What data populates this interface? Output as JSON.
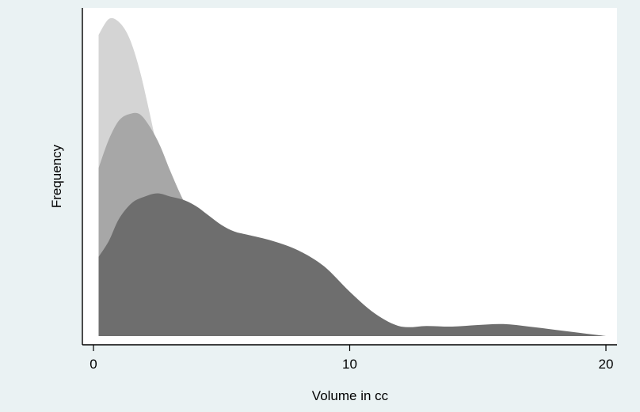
{
  "chart_data": {
    "type": "area",
    "chart_kind": "overlaid density curves",
    "title": "",
    "xlabel": "Volume in cc",
    "ylabel": "Frequency",
    "xlim": [
      0,
      20
    ],
    "ylim": [
      0,
      1
    ],
    "y_ticks_shown": false,
    "x_ticks": [
      0,
      10,
      20
    ],
    "grid": false,
    "legend": "none",
    "colors": {
      "outer_background": "#eaf2f3",
      "plot_background": "#ffffff",
      "axis": "#000000"
    },
    "series": [
      {
        "fill": "#d4d4d4",
        "x": [
          0.2,
          0.6,
          1.0,
          1.4,
          1.8,
          2.2,
          2.6,
          3.0,
          3.4,
          3.8,
          4.2,
          4.6,
          5.0,
          5.5,
          6.0,
          7.0,
          8.0,
          9.0,
          10.0,
          12.0,
          15.0,
          20.0
        ],
        "values": [
          0.95,
          1.0,
          0.99,
          0.94,
          0.84,
          0.7,
          0.55,
          0.41,
          0.29,
          0.2,
          0.13,
          0.09,
          0.06,
          0.04,
          0.025,
          0.015,
          0.01,
          0.008,
          0.006,
          0.004,
          0.002,
          0.0
        ]
      },
      {
        "fill": "#a7a7a7",
        "x": [
          0.2,
          0.6,
          1.0,
          1.4,
          1.8,
          2.2,
          2.6,
          3.0,
          3.5,
          4.0,
          4.5,
          5.0,
          5.5,
          6.0,
          7.0,
          8.0,
          9.0,
          10.0,
          11.0,
          12.0,
          13.0,
          15.0,
          20.0
        ],
        "values": [
          0.53,
          0.62,
          0.68,
          0.7,
          0.7,
          0.66,
          0.6,
          0.52,
          0.43,
          0.36,
          0.3,
          0.25,
          0.21,
          0.18,
          0.14,
          0.1,
          0.075,
          0.05,
          0.04,
          0.03,
          0.025,
          0.01,
          0.0
        ]
      },
      {
        "fill": "#6e6e6e",
        "x": [
          0.2,
          0.6,
          1.0,
          1.5,
          2.0,
          2.5,
          3.0,
          3.5,
          4.0,
          4.5,
          5.0,
          5.5,
          6.0,
          7.0,
          8.0,
          9.0,
          10.0,
          11.0,
          12.0,
          13.0,
          14.0,
          15.0,
          16.0,
          17.0,
          18.0,
          19.0,
          20.0
        ],
        "values": [
          0.25,
          0.3,
          0.37,
          0.42,
          0.44,
          0.45,
          0.44,
          0.43,
          0.41,
          0.38,
          0.35,
          0.33,
          0.32,
          0.3,
          0.27,
          0.22,
          0.14,
          0.07,
          0.03,
          0.032,
          0.03,
          0.035,
          0.038,
          0.03,
          0.02,
          0.01,
          0.0
        ]
      }
    ]
  }
}
